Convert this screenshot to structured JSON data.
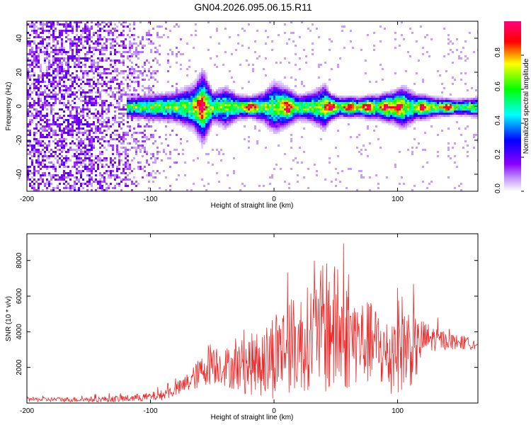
{
  "title": "GN04.2026.095.06.15.R11",
  "chart_data": [
    {
      "type": "heatmap",
      "xlabel": "Height of straight line (km)",
      "ylabel": "Frequency (Hz)",
      "xlim": [
        -200,
        165
      ],
      "ylim": [
        -50,
        50
      ],
      "xticks": [
        -200,
        -100,
        0,
        100
      ],
      "xtick_labels": [
        "-200",
        "-100",
        "0",
        "100"
      ],
      "yticks": [
        -40,
        -20,
        0,
        20,
        40
      ],
      "ytick_labels": [
        "-40",
        "-20",
        "0",
        "20",
        "40"
      ],
      "colorbar": {
        "label": "Normalized spectral amplitude",
        "range": [
          0,
          1
        ],
        "ticks": [
          0,
          0.2,
          0.4,
          0.6,
          0.8
        ],
        "tick_labels": [
          "0.0",
          "0.2",
          "0.4",
          "0.6",
          "0.8"
        ],
        "colors": [
          "#ffffff",
          "#8b00ff",
          "#0000ff",
          "#00ffff",
          "#00ff00",
          "#ffff00",
          "#ff0000",
          "#ff007f"
        ]
      },
      "noise_region_km": [
        -200,
        -95
      ],
      "signal_start_km": -120,
      "ridge_centre_hz": 0,
      "ridge_profile": {
        "x": [
          -120,
          -100,
          -80,
          -65,
          -58,
          -50,
          -40,
          -30,
          -20,
          -10,
          0,
          10,
          20,
          30,
          40,
          45,
          55,
          70,
          85,
          95,
          105,
          115,
          130,
          145,
          165
        ],
        "halfwidth_hz": [
          4,
          5,
          6,
          9,
          14,
          6,
          8,
          5,
          4,
          6,
          10,
          7,
          5,
          6,
          9,
          5,
          4,
          4,
          5,
          6,
          8,
          5,
          4,
          3,
          4
        ]
      },
      "hot_spots_km": [
        -60,
        -20,
        10,
        45,
        60,
        75,
        90,
        100,
        120,
        140
      ]
    },
    {
      "type": "line",
      "xlabel": "Height of straight line (km)",
      "ylabel": "SNR (10 * v/v)",
      "xlim": [
        -200,
        165
      ],
      "ylim": [
        0,
        9500
      ],
      "xticks": [
        -200,
        -100,
        0,
        100
      ],
      "xtick_labels": [
        "-200",
        "-100",
        "0",
        "100"
      ],
      "yticks": [
        2000,
        4000,
        6000,
        8000
      ],
      "ytick_labels": [
        "2000",
        "4000",
        "6000",
        "8000"
      ],
      "line_color": "#ee2c2c",
      "series": [
        {
          "name": "SNR",
          "x": [
            -200,
            -150,
            -120,
            -100,
            -90,
            -75,
            -65,
            -55,
            -50,
            -45,
            -35,
            -25,
            -15,
            -5,
            0,
            10,
            20,
            30,
            40,
            45,
            50,
            55,
            65,
            75,
            85,
            90,
            95,
            100,
            105,
            115,
            120,
            130,
            140,
            150,
            165
          ],
          "mean": [
            200,
            200,
            250,
            350,
            450,
            900,
            1400,
            2000,
            2500,
            2100,
            2000,
            2100,
            2200,
            2400,
            2800,
            3200,
            3300,
            3800,
            4200,
            4400,
            4000,
            3800,
            3600,
            3400,
            3200,
            2600,
            2600,
            3600,
            3300,
            3000,
            3600,
            3600,
            3500,
            3400,
            3300
          ],
          "amplitude": [
            120,
            150,
            200,
            250,
            300,
            450,
            700,
            1000,
            1500,
            1000,
            1200,
            1600,
            1800,
            2200,
            2600,
            2600,
            2800,
            3000,
            3600,
            4400,
            3600,
            3400,
            2600,
            2400,
            2200,
            2200,
            2600,
            3000,
            2800,
            1800,
            1100,
            700,
            500,
            400,
            300
          ]
        }
      ]
    }
  ]
}
